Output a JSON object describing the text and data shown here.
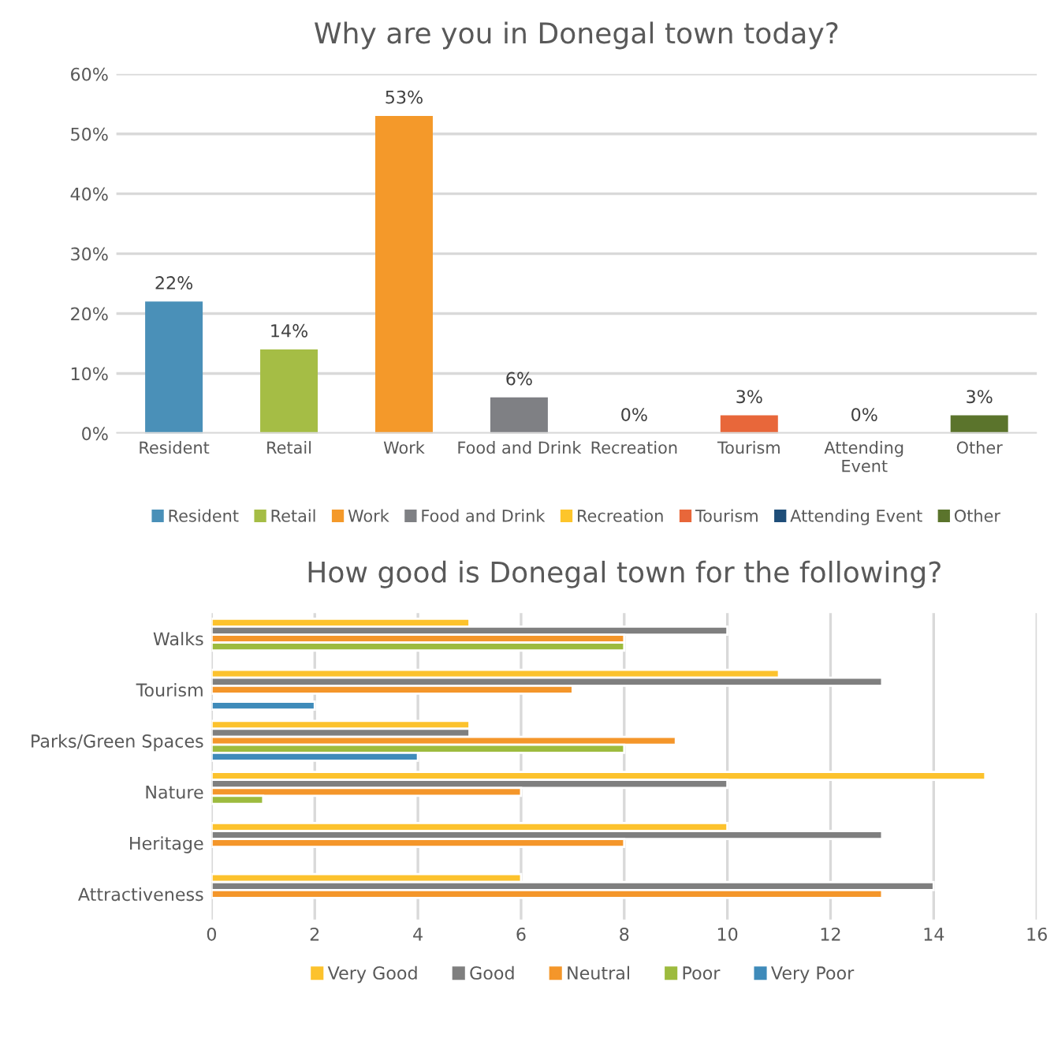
{
  "chart_data": [
    {
      "type": "bar",
      "title": "Why are you in Donegal town today?",
      "categories": [
        "Resident",
        "Retail",
        "Work",
        "Food and Drink",
        "Recreation",
        "Tourism",
        "Attending\nEvent",
        "Other"
      ],
      "series": [
        {
          "name": "Resident",
          "color": "#4a90b8",
          "values": [
            22,
            null,
            null,
            null,
            null,
            null,
            null,
            null
          ],
          "value_labels": [
            "22%",
            null,
            null,
            null,
            null,
            null,
            null,
            null
          ]
        },
        {
          "name": "Retail",
          "color": "#a5bd45",
          "values": [
            null,
            14,
            null,
            null,
            null,
            null,
            null,
            null
          ],
          "value_labels": [
            null,
            "14%",
            null,
            null,
            null,
            null,
            null,
            null
          ]
        },
        {
          "name": "Work",
          "color": "#f4992a",
          "values": [
            null,
            null,
            53,
            null,
            null,
            null,
            null,
            null
          ],
          "value_labels": [
            null,
            null,
            "53%",
            null,
            null,
            null,
            null,
            null
          ]
        },
        {
          "name": "Food and Drink",
          "color": "#7f8084",
          "values": [
            null,
            null,
            null,
            6,
            null,
            null,
            null,
            null
          ],
          "value_labels": [
            null,
            null,
            null,
            "6%",
            null,
            null,
            null,
            null
          ]
        },
        {
          "name": "Recreation",
          "color": "#fdc52b",
          "values": [
            null,
            null,
            null,
            null,
            0,
            null,
            null,
            null
          ],
          "value_labels": [
            null,
            null,
            null,
            null,
            "0%",
            null,
            null,
            null
          ]
        },
        {
          "name": "Tourism",
          "color": "#e8673a",
          "values": [
            null,
            null,
            null,
            null,
            null,
            3,
            null,
            null
          ],
          "value_labels": [
            null,
            null,
            null,
            null,
            null,
            "3%",
            null,
            null
          ]
        },
        {
          "name": "Attending Event",
          "color": "#1f4e79",
          "values": [
            null,
            null,
            null,
            null,
            null,
            null,
            0,
            null
          ],
          "value_labels": [
            null,
            null,
            null,
            null,
            null,
            null,
            "0%",
            null
          ]
        },
        {
          "name": "Other",
          "color": "#5b742c",
          "values": [
            null,
            null,
            null,
            null,
            null,
            null,
            null,
            3
          ],
          "value_labels": [
            null,
            null,
            null,
            null,
            null,
            null,
            null,
            "3%"
          ]
        }
      ],
      "ylim": [
        0,
        60
      ],
      "yticks": [
        {
          "value": 0,
          "label": "0%"
        },
        {
          "value": 10,
          "label": "10%"
        },
        {
          "value": 20,
          "label": "20%"
        },
        {
          "value": 30,
          "label": "30%"
        },
        {
          "value": 40,
          "label": "40%"
        },
        {
          "value": 50,
          "label": "50%"
        },
        {
          "value": 60,
          "label": "60%"
        }
      ],
      "grid": "y",
      "legend": "bottom"
    },
    {
      "type": "bar",
      "orientation": "horizontal",
      "title": "How good is Donegal town for the following?",
      "categories": [
        "Walks",
        "Tourism",
        "Parks/Green Spaces",
        "Nature",
        "Heritage",
        "Attractiveness"
      ],
      "series": [
        {
          "name": "Very Good",
          "color": "#fcc22d",
          "values": [
            5,
            11,
            5,
            15,
            10,
            6
          ]
        },
        {
          "name": "Good",
          "color": "#7f7f7f",
          "values": [
            10,
            13,
            5,
            10,
            13,
            14
          ]
        },
        {
          "name": "Neutral",
          "color": "#f4962a",
          "values": [
            8,
            7,
            9,
            6,
            8,
            13
          ]
        },
        {
          "name": "Poor",
          "color": "#9dbb3e",
          "values": [
            8,
            null,
            8,
            1,
            null,
            null
          ]
        },
        {
          "name": "Very Poor",
          "color": "#3f8bba",
          "values": [
            null,
            2,
            4,
            null,
            null,
            null
          ]
        }
      ],
      "xlim": [
        0,
        16
      ],
      "xticks": [
        0,
        2,
        4,
        6,
        8,
        10,
        12,
        14,
        16
      ],
      "grid": "x",
      "legend": "bottom"
    }
  ]
}
